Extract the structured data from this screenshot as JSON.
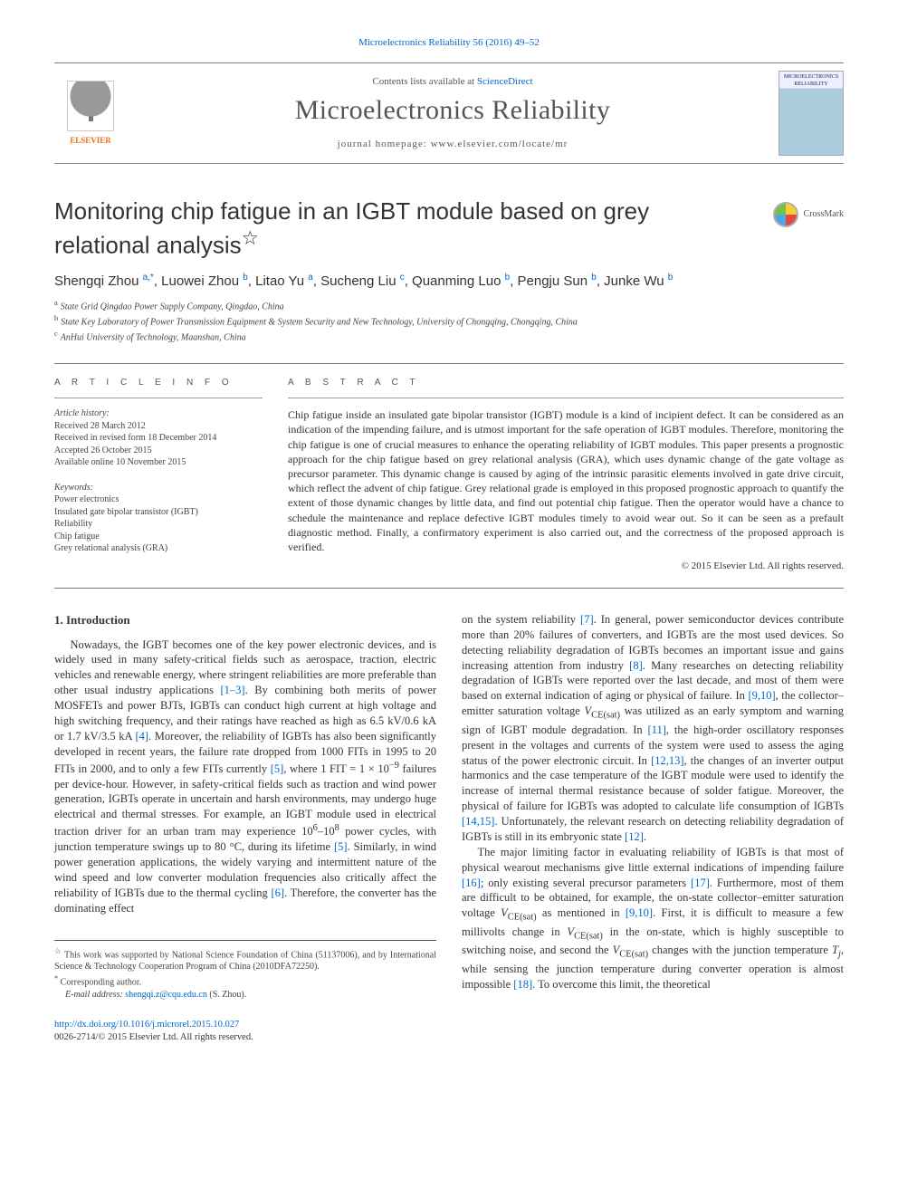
{
  "top_citation": "Microelectronics Reliability 56 (2016) 49–52",
  "header": {
    "contents_prefix": "Contents lists available at ",
    "contents_link": "ScienceDirect",
    "journal": "Microelectronics Reliability",
    "homepage_prefix": "journal homepage: ",
    "homepage_url": "www.elsevier.com/locate/mr",
    "publisher_name": "ELSEVIER",
    "cover_label_top": "MICROELECTRONICS",
    "cover_label_bottom": "RELIABILITY"
  },
  "crossmark_label": "CrossMark",
  "title": "Monitoring chip fatigue in an IGBT module based on grey relational analysis",
  "title_footnote_marker": "☆",
  "authors_html": "Shengqi Zhou <sup>a,*</sup>, Luowei Zhou <sup>b</sup>, Litao Yu <sup>a</sup>, Sucheng Liu <sup>c</sup>, Quanming Luo <sup>b</sup>, Pengju Sun <sup>b</sup>, Junke Wu <sup>b</sup>",
  "affiliations": [
    {
      "key": "a",
      "text": "State Grid Qingdao Power Supply Company, Qingdao, China"
    },
    {
      "key": "b",
      "text": "State Key Laboratory of Power Transmission Equipment & System Security and New Technology, University of Chongqing, Chongqing, China"
    },
    {
      "key": "c",
      "text": "AnHui University of Technology, Maanshan, China"
    }
  ],
  "info_label": "A R T I C L E   I N F O",
  "abstract_label": "A B S T R A C T",
  "history": {
    "label": "Article history:",
    "received": "Received 28 March 2012",
    "revised": "Received in revised form 18 December 2014",
    "accepted": "Accepted 26 October 2015",
    "online": "Available online 10 November 2015"
  },
  "keywords": {
    "label": "Keywords:",
    "items": [
      "Power electronics",
      "Insulated gate bipolar transistor (IGBT)",
      "Reliability",
      "Chip fatigue",
      "Grey relational analysis (GRA)"
    ]
  },
  "abstract_text": "Chip fatigue inside an insulated gate bipolar transistor (IGBT) module is a kind of incipient defect. It can be considered as an indication of the impending failure, and is utmost important for the safe operation of IGBT modules. Therefore, monitoring the chip fatigue is one of crucial measures to enhance the operating reliability of IGBT modules. This paper presents a prognostic approach for the chip fatigue based on grey relational analysis (GRA), which uses dynamic change of the gate voltage as precursor parameter. This dynamic change is caused by aging of the intrinsic parasitic elements involved in gate drive circuit, which reflect the advent of chip fatigue. Grey relational grade is employed in this proposed prognostic approach to quantify the extent of those dynamic changes by little data, and find out potential chip fatigue. Then the operator would have a chance to schedule the maintenance and replace defective IGBT modules timely to avoid wear out. So it can be seen as a prefault diagnostic method. Finally, a confirmatory experiment is also carried out, and the correctness of the proposed approach is verified.",
  "copyright": "© 2015 Elsevier Ltd. All rights reserved.",
  "section1_head": "1. Introduction",
  "body_left_html": "Nowadays, the IGBT becomes one of the key power electronic devices, and is widely used in many safety-critical fields such as aerospace, traction, electric vehicles and renewable energy, where stringent reliabilities are more preferable than other usual industry applications <a>[1–3]</a>. By combining both merits of power MOSFETs and power BJTs, IGBTs can conduct high current at high voltage and high switching frequency, and their ratings have reached as high as 6.5 kV/0.6 kA or 1.7 kV/3.5 kA <a>[4]</a>. Moreover, the reliability of IGBTs has also been significantly developed in recent years, the failure rate dropped from 1000 FITs in 1995 to 20 FITs in 2000, and to only a few FITs currently <a>[5]</a>, where 1 FIT = 1 × 10<sup>−9</sup> failures per device-hour. However, in safety-critical fields such as traction and wind power generation, IGBTs operate in uncertain and harsh environments, may undergo huge electrical and thermal stresses. For example, an IGBT module used in electrical traction driver for an urban tram may experience 10<sup>6</sup>–10<sup>8</sup> power cycles, with junction temperature swings up to 80 °C, during its lifetime <a>[5]</a>. Similarly, in wind power generation applications, the widely varying and intermittent nature of the wind speed and low converter modulation frequencies also critically affect the reliability of IGBTs due to the thermal cycling <a>[6]</a>. Therefore, the converter has the dominating effect",
  "body_right_p1_html": "on the system reliability <a>[7]</a>. In general, power semiconductor devices contribute more than 20% failures of converters, and IGBTs are the most used devices. So detecting reliability degradation of IGBTs becomes an important issue and gains increasing attention from industry <a>[8]</a>. Many researches on detecting reliability degradation of IGBTs were reported over the last decade, and most of them were based on external indication of aging or physical of failure. In <a>[9,10]</a>, the collector–emitter saturation voltage <span class='it'>V</span><sub>CE(sat)</sub> was utilized as an early symptom and warning sign of IGBT module degradation. In <a>[11]</a>, the high-order oscillatory responses present in the voltages and currents of the system were used to assess the aging status of the power electronic circuit. In <a>[12,13]</a>, the changes of an inverter output harmonics and the case temperature of the IGBT module were used to identify the increase of internal thermal resistance because of solder fatigue. Moreover, the physical of failure for IGBTs was adopted to calculate life consumption of IGBTs <a>[14,15]</a>. Unfortunately, the relevant research on detecting reliability degradation of IGBTs is still in its embryonic state <a>[12]</a>.",
  "body_right_p2_html": "The major limiting factor in evaluating reliability of IGBTs is that most of physical wearout mechanisms give little external indications of impending failure <a>[16]</a>; only existing several precursor parameters <a>[17]</a>. Furthermore, most of them are difficult to be obtained, for example, the on-state collector–emitter saturation voltage <span class='it'>V</span><sub>CE(sat)</sub> as mentioned in <a>[9,10]</a>. First, it is difficult to measure a few millivolts change in <span class='it'>V</span><sub>CE(sat)</sub> in the on-state, which is highly susceptible to switching noise, and second the <span class='it'>V</span><sub>CE(sat)</sub> changes with the junction temperature <span class='it'>T<sub>j</sub></span>, while sensing the junction temperature during converter operation is almost impossible <a>[18]</a>. To overcome this limit, the theoretical",
  "footnotes": {
    "funding_marker": "☆",
    "funding": "This work was supported by National Science Foundation of China (51137006), and by International Science & Technology Cooperation Program of China (2010DFA72250).",
    "corr_marker": "*",
    "corr": "Corresponding author.",
    "email_label": "E-mail address:",
    "email": "shengqi.z@cqu.edu.cn",
    "email_who": "(S. Zhou)."
  },
  "footer": {
    "doi": "http://dx.doi.org/10.1016/j.microrel.2015.10.027",
    "issn_line": "0026-2714/© 2015 Elsevier Ltd. All rights reserved."
  },
  "colors": {
    "link": "#0066cc",
    "text": "#333333",
    "rule": "#777777",
    "elsevier_orange": "#e9711c"
  }
}
